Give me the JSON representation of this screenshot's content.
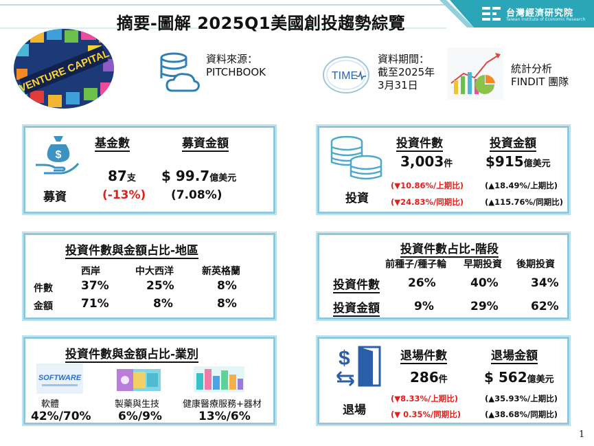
{
  "header": {
    "title": "摘要-圖解 2025Q1美國創投趨勢綜覽",
    "logo_cn": "台灣經濟研究院",
    "logo_en": "Taiwan Institute of Economic Research",
    "banner_image_text": "VENTURE CAPITAL"
  },
  "info": {
    "source_label": "資料來源：",
    "source_value": "PITCHBOOK",
    "time_badge": "TIME",
    "period_label": "資料期間：",
    "period_line1": "截至2025年",
    "period_line2": "3月31日",
    "team_line1": "統計分析",
    "team_line2": "FINDIT 團隊"
  },
  "fundraising": {
    "section_label": "募資",
    "col1_header": "基金數",
    "col2_header": "募資金額",
    "fund_count": "87",
    "fund_count_unit": "支",
    "fund_count_change": "(-13%)",
    "amount": "$ 99.7",
    "amount_unit": "億美元",
    "amount_change": "(7.08%)"
  },
  "investment": {
    "section_label": "投資",
    "col1_header": "投資件數",
    "col2_header": "投資金額",
    "deal_count": "3,003",
    "deal_count_unit": "件",
    "deal_qoq": "(▼10.86%/上期比)",
    "deal_yoy": "(▼24.83%/同期比)",
    "amount": "$915",
    "amount_unit": "億美元",
    "amount_qoq": "(▲18.49%/上期比)",
    "amount_yoy": "(▲115.76%/同期比)"
  },
  "region": {
    "title": "投資件數與金額占比-地區",
    "columns": [
      "西岸",
      "中大西洋",
      "新英格蘭"
    ],
    "row1_label": "件數",
    "row1_values": [
      "37%",
      "25%",
      "8%"
    ],
    "row2_label": "金額",
    "row2_values": [
      "71%",
      "8%",
      "8%"
    ]
  },
  "stage": {
    "title": "投資件數占比-階段",
    "columns": [
      "前種子/種子輪",
      "早期投資",
      "後期投資"
    ],
    "row1_label": "投資件數",
    "row1_values": [
      "26%",
      "40%",
      "34%"
    ],
    "row2_label": "投資金額",
    "row2_values": [
      "9%",
      "29%",
      "62%"
    ]
  },
  "industry": {
    "title": "投資件數與金額占比-業別",
    "items": [
      {
        "label": "軟體",
        "value": "42%/70%",
        "icon_text": "SOFTWARE"
      },
      {
        "label": "製藥與生技",
        "value": "6%/9%"
      },
      {
        "label": "健康醫療服務+器材",
        "value": "13%/6%"
      }
    ]
  },
  "exit": {
    "section_label": "退場",
    "col1_header": "退場件數",
    "col2_header": "退場金額",
    "count": "286",
    "count_unit": "件",
    "count_qoq": "(▼8.33%/上期比)",
    "count_yoy": "(▼ 0.35%/同期比)",
    "amount": "$ 562",
    "amount_unit": "億美元",
    "amount_qoq": "(▲35.93%/上期比)",
    "amount_yoy": "(▲38.68%/同期比)"
  },
  "page_number": "1",
  "colors": {
    "teal": "#2aa6b8",
    "card_border": "#8fc7dc",
    "red": "#e0201b",
    "coin": "#4fa8c9"
  }
}
